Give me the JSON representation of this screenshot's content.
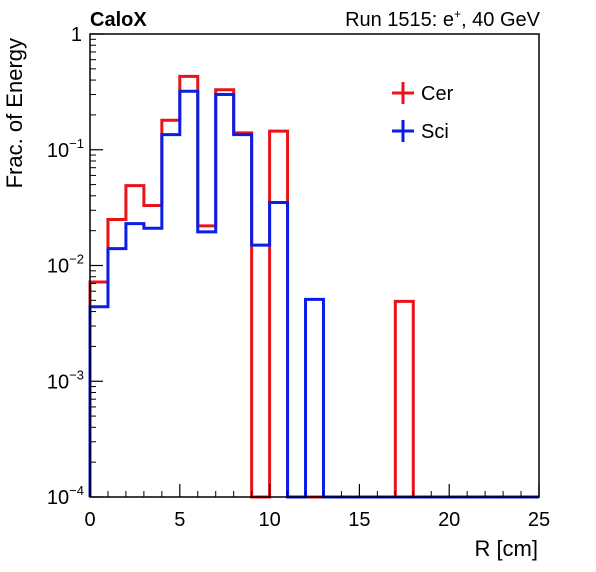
{
  "header": {
    "brand": "CaloX",
    "run_label": "Run 1515: e",
    "run_sup": "+",
    "run_suffix": ", 40 GeV"
  },
  "chart_data": {
    "type": "line",
    "step": true,
    "xlabel": "R [cm]",
    "ylabel": "Frac. of Energy",
    "xlim": [
      0,
      25
    ],
    "ylim": [
      0.0001,
      1
    ],
    "yscale": "log",
    "grid": false,
    "legend_position": "top-right",
    "bin_edges": [
      0,
      1,
      2,
      3,
      4,
      5,
      6,
      7,
      8,
      9,
      10,
      11,
      12,
      13,
      14,
      15,
      16,
      17,
      18,
      19,
      20,
      21,
      22,
      23,
      24,
      25
    ],
    "x_ticks": [
      0,
      5,
      10,
      15,
      20,
      25
    ],
    "x_tick_labels": [
      "0",
      "5",
      "10",
      "15",
      "20",
      "25"
    ],
    "y_ticks": [
      {
        "value": 1,
        "base": "1",
        "exp": ""
      },
      {
        "value": 0.1,
        "base": "10",
        "exp": "−1"
      },
      {
        "value": 0.01,
        "base": "10",
        "exp": "−2"
      },
      {
        "value": 0.001,
        "base": "10",
        "exp": "−3"
      },
      {
        "value": 0.0001,
        "base": "10",
        "exp": "−4"
      }
    ],
    "series": [
      {
        "name": "Cer",
        "color": "#e8141a",
        "values": [
          0.0072,
          0.025,
          0.049,
          0.033,
          0.18,
          0.43,
          0.022,
          0.33,
          0.14,
          0,
          0.145,
          0,
          0,
          0,
          0,
          0,
          0,
          0.0049,
          0,
          0,
          0,
          0,
          0,
          0,
          0
        ]
      },
      {
        "name": "Sci",
        "color": "#0a1ee6",
        "values": [
          0.0044,
          0.014,
          0.023,
          0.021,
          0.135,
          0.32,
          0.0195,
          0.3,
          0.135,
          0.015,
          0.035,
          0,
          0.0051,
          0,
          0,
          0,
          0,
          0,
          0,
          0,
          0,
          0,
          0,
          0,
          0
        ]
      }
    ]
  }
}
